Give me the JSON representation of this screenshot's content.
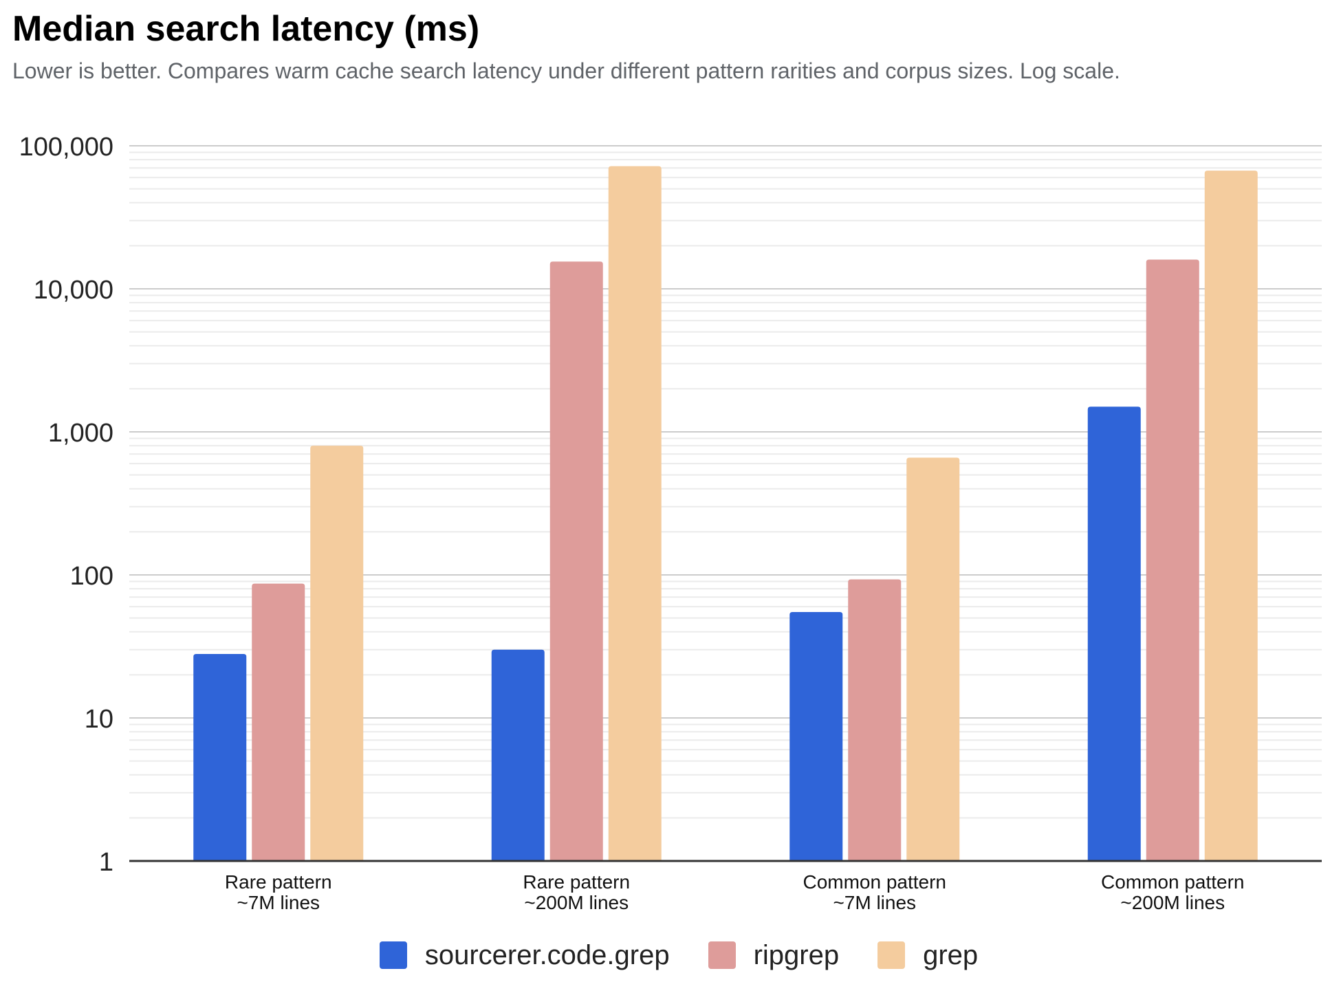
{
  "chart_data": {
    "type": "bar",
    "title": "Median search latency (ms)",
    "subtitle": "Lower is better. Compares warm cache search latency under different pattern rarities and corpus sizes. Log scale.",
    "xlabel": "",
    "ylabel": "",
    "y_scale": "log",
    "ylim": [
      1,
      100000
    ],
    "y_ticks": [
      {
        "value": 1,
        "label": "1"
      },
      {
        "value": 10,
        "label": "10"
      },
      {
        "value": 100,
        "label": "100"
      },
      {
        "value": 1000,
        "label": "1,000"
      },
      {
        "value": 10000,
        "label": "10,000"
      },
      {
        "value": 100000,
        "label": "100,000"
      }
    ],
    "grid": true,
    "legend_position": "bottom",
    "categories": [
      [
        "Rare pattern",
        "~7M lines"
      ],
      [
        "Rare pattern",
        "~200M lines"
      ],
      [
        "Common pattern",
        "~7M lines"
      ],
      [
        "Common pattern",
        "~200M lines"
      ]
    ],
    "series": [
      {
        "name": "sourcerer.code.grep",
        "color": "#2f64d8",
        "values": [
          28,
          30,
          55,
          1500
        ]
      },
      {
        "name": "ripgrep",
        "color": "#de9c9a",
        "values": [
          87,
          15500,
          93,
          16000
        ]
      },
      {
        "name": "grep",
        "color": "#f4cc9e",
        "values": [
          800,
          72000,
          660,
          67000
        ]
      }
    ]
  }
}
